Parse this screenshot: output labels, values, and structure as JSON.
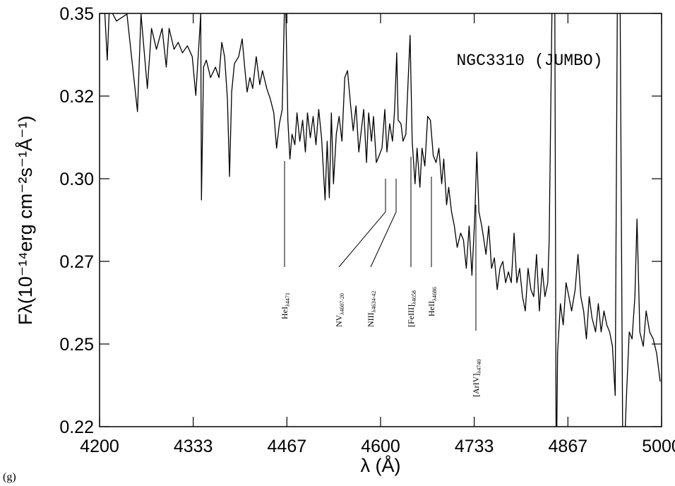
{
  "panel_label": "(g)",
  "chart_data": {
    "type": "line",
    "title": "NGC3310 (JUMBO)",
    "x_label": "λ (Å)",
    "y_label": "Fλ(10⁻¹⁴erg cm⁻²s⁻¹Å⁻¹)",
    "color": "#000000",
    "xlim": [
      4200,
      5000
    ],
    "xticks": [
      4200,
      {
        "value": 4333.33,
        "label": "4333"
      },
      {
        "value": 4466.67,
        "label": "4467"
      },
      4600,
      {
        "value": 4733.33,
        "label": "4733"
      },
      {
        "value": 4866.67,
        "label": "4867"
      },
      5000
    ],
    "ylim": [
      0.22,
      0.35
    ],
    "yticks": [
      {
        "value": 0.22,
        "label": "0.22"
      },
      {
        "value": 0.246,
        "label": "0.25"
      },
      {
        "value": 0.272,
        "label": "0.27"
      },
      {
        "value": 0.298,
        "label": "0.30"
      },
      {
        "value": 0.324,
        "label": "0.32"
      },
      {
        "value": 0.35,
        "label": "0.35"
      }
    ],
    "x": [
      4207,
      4211,
      4214,
      4224,
      4239,
      4254,
      4259,
      4268,
      4274,
      4281,
      4289,
      4295,
      4299,
      4306,
      4312,
      4318,
      4325,
      4332,
      4337,
      4344,
      4345,
      4348,
      4352,
      4358,
      4365,
      4370,
      4374,
      4378,
      4382,
      4385,
      4388,
      4392,
      4398,
      4403,
      4407,
      4410,
      4414,
      4418,
      4423,
      4428,
      4432,
      4438,
      4443,
      4448,
      4452,
      4456,
      4460,
      4463,
      4465,
      4468,
      4471,
      4474,
      4478,
      4481,
      4485,
      4489,
      4493,
      4496,
      4500,
      4504,
      4508,
      4512,
      4516,
      4521,
      4524,
      4527,
      4530,
      4533,
      4537,
      4541,
      4545,
      4549,
      4553,
      4557,
      4561,
      4565,
      4569,
      4572,
      4576,
      4580,
      4583,
      4587,
      4590,
      4594,
      4598,
      4602,
      4606,
      4609,
      4613,
      4617,
      4620,
      4623,
      4625,
      4629,
      4632,
      4636,
      4639,
      4642,
      4645,
      4649,
      4652,
      4656,
      4659,
      4663,
      4667,
      4671,
      4675,
      4679,
      4683,
      4687,
      4690,
      4694,
      4697,
      4701,
      4705,
      4709,
      4714,
      4718,
      4722,
      4726,
      4730,
      4734,
      4737,
      4740,
      4744,
      4747,
      4750,
      4754,
      4758,
      4762,
      4766,
      4770,
      4774,
      4778,
      4782,
      4786,
      4790,
      4794,
      4798,
      4802,
      4806,
      4810,
      4814,
      4818,
      4822,
      4826,
      4830,
      4834,
      4838,
      4840,
      4844,
      4848,
      4850,
      4852,
      4856,
      4860,
      4864,
      4868,
      4872,
      4877,
      4881,
      4885,
      4889,
      4893,
      4897,
      4901,
      4906,
      4910,
      4914,
      4918,
      4922,
      4926,
      4930,
      4934,
      4937,
      4941,
      4945,
      4950,
      4954,
      4958,
      4962,
      4965,
      4969,
      4974,
      4978,
      4983,
      4988,
      4993,
      4998
    ],
    "values": [
      0.352,
      0.3353,
      0.352,
      0.3476,
      0.3498,
      0.3191,
      0.3498,
      0.3264,
      0.3453,
      0.3387,
      0.3453,
      0.3331,
      0.3453,
      0.3387,
      0.3409,
      0.3376,
      0.3398,
      0.3364,
      0.3242,
      0.3498,
      0.2913,
      0.3331,
      0.3353,
      0.3298,
      0.3331,
      0.3298,
      0.3409,
      0.3364,
      0.3231,
      0.2987,
      0.3253,
      0.3342,
      0.3364,
      0.342,
      0.332,
      0.3253,
      0.3298,
      0.3264,
      0.3364,
      0.3276,
      0.332,
      0.3264,
      0.3231,
      0.3187,
      0.3076,
      0.3153,
      0.3198,
      0.3498,
      0.352,
      0.3164,
      0.3042,
      0.312,
      0.3087,
      0.3187,
      0.3098,
      0.3164,
      0.3064,
      0.3187,
      0.3109,
      0.3176,
      0.3087,
      0.3198,
      0.3109,
      0.2913,
      0.3098,
      0.292,
      0.3187,
      0.2964,
      0.312,
      0.3176,
      0.3098,
      0.3298,
      0.332,
      0.322,
      0.3131,
      0.3209,
      0.3064,
      0.312,
      0.3198,
      0.3031,
      0.3187,
      0.3098,
      0.3176,
      0.3031,
      0.3053,
      0.3076,
      0.3198,
      0.3064,
      0.3153,
      0.3098,
      0.3198,
      0.3376,
      0.3164,
      0.3153,
      0.3098,
      0.312,
      0.3276,
      0.3431,
      0.3098,
      0.2964,
      0.3076,
      0.2953,
      0.3076,
      0.302,
      0.3176,
      0.3164,
      0.3053,
      0.3031,
      0.3076,
      0.2964,
      0.3042,
      0.2898,
      0.2953,
      0.2876,
      0.2831,
      0.2764,
      0.2809,
      0.2787,
      0.2698,
      0.2831,
      0.2676,
      0.2853,
      0.3064,
      0.2876,
      0.2831,
      0.2787,
      0.2742,
      0.2831,
      0.2698,
      0.2731,
      0.2631,
      0.2698,
      0.272,
      0.2653,
      0.2687,
      0.2653,
      0.2809,
      0.2653,
      0.2698,
      0.2609,
      0.2564,
      0.2698,
      0.2631,
      0.2609,
      0.2742,
      0.2564,
      0.2698,
      0.2609,
      0.2653,
      0.2787,
      0.352,
      0.352,
      0.2009,
      0.2431,
      0.2587,
      0.252,
      0.2653,
      0.2609,
      0.2564,
      0.2631,
      0.2742,
      0.2609,
      0.2564,
      0.2476,
      0.2609,
      0.2542,
      0.2498,
      0.2587,
      0.2498,
      0.2564,
      0.252,
      0.2498,
      0.2453,
      0.2298,
      0.352,
      0.352,
      0.2009,
      0.2298,
      0.2498,
      0.2476,
      0.2609,
      0.2853,
      0.2498,
      0.2453,
      0.2564,
      0.2498,
      0.2476,
      0.2431,
      0.2342
    ],
    "annotations": [
      {
        "text": "HeI",
        "sub": "λ4471"
      },
      {
        "text": "NV",
        "sub": "λ4607-20"
      },
      {
        "text": "NIII",
        "sub": "λ4634-42"
      },
      {
        "text": "[FeIII]",
        "sub": "λ4658"
      },
      {
        "text": "HeII",
        "sub": "λ4686"
      },
      {
        "text": "[ArIV]",
        "sub": "λ4740"
      }
    ]
  }
}
